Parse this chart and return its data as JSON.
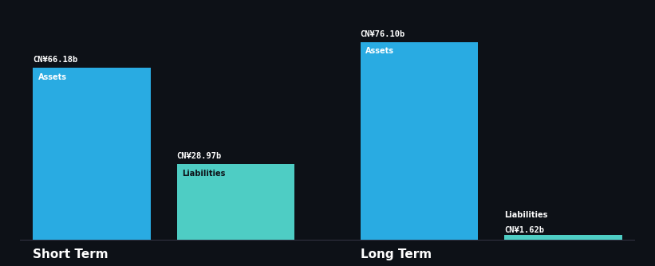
{
  "background_color": "#0d1117",
  "text_color": "#ffffff",
  "label_color_dark": "#0d1117",
  "bar_color_assets": "#29ABE2",
  "bar_color_liabilities": "#4ECDC4",
  "short_term": {
    "assets_value": 66.18,
    "liabilities_value": 28.97,
    "assets_label": "CN¥66.18b",
    "liabilities_label": "CN¥28.97b",
    "assets_text": "Assets",
    "liabilities_text": "Liabilities",
    "section_label": "Short Term"
  },
  "long_term": {
    "assets_value": 76.1,
    "liabilities_value": 1.62,
    "assets_label": "CN¥76.10b",
    "liabilities_label": "CN¥1.62b",
    "assets_text": "Assets",
    "liabilities_text": "Liabilities",
    "section_label": "Long Term"
  },
  "max_value": 80,
  "figsize": [
    8.21,
    3.34
  ],
  "dpi": 100
}
